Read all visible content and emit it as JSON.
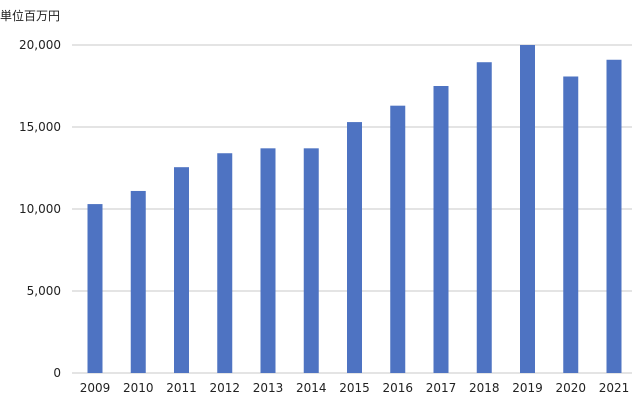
{
  "chart_data": {
    "type": "bar",
    "unit_label": "単位百万円",
    "title": "",
    "xlabel": "",
    "ylabel": "",
    "categories": [
      "2009",
      "2010",
      "2011",
      "2012",
      "2013",
      "2014",
      "2015",
      "2016",
      "2017",
      "2018",
      "2019",
      "2020",
      "2021"
    ],
    "values": [
      10300,
      11100,
      12550,
      13400,
      13700,
      13700,
      15300,
      16300,
      17500,
      18950,
      20000,
      18080,
      19100
    ],
    "ylim": [
      0,
      20000
    ],
    "yticks": [
      0,
      5000,
      10000,
      15000,
      20000
    ],
    "ytick_labels": [
      "0",
      "5,000",
      "10,000",
      "15,000",
      "20,000"
    ],
    "grid": true,
    "legend": "none",
    "bar_color": "#4e73c2",
    "grid_color": "#c8c8c8"
  }
}
